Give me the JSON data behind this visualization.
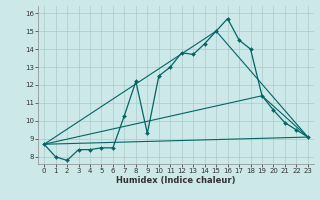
{
  "xlabel": "Humidex (Indice chaleur)",
  "background_color": "#cce8e8",
  "grid_color": "#aacccc",
  "line_color": "#006666",
  "xlim": [
    -0.5,
    23.5
  ],
  "ylim": [
    7.6,
    16.4
  ],
  "x_main": [
    0,
    1,
    2,
    3,
    4,
    5,
    6,
    7,
    8,
    9,
    10,
    11,
    12,
    13,
    14,
    15,
    16,
    17,
    18,
    19,
    20,
    21,
    22,
    23
  ],
  "y_main": [
    8.7,
    8.0,
    7.8,
    8.4,
    8.4,
    8.5,
    8.5,
    10.3,
    12.2,
    9.3,
    12.5,
    13.0,
    13.8,
    13.7,
    14.3,
    15.0,
    15.7,
    14.5,
    14.0,
    11.4,
    10.6,
    9.9,
    9.5,
    9.1
  ],
  "line1_x": [
    0,
    23
  ],
  "line1_y": [
    8.7,
    9.1
  ],
  "line2_x": [
    0,
    19,
    23
  ],
  "line2_y": [
    8.7,
    11.4,
    9.1
  ],
  "line3_x": [
    0,
    15,
    23
  ],
  "line3_y": [
    8.7,
    15.0,
    9.1
  ],
  "yticks": [
    8,
    9,
    10,
    11,
    12,
    13,
    14,
    15,
    16
  ]
}
